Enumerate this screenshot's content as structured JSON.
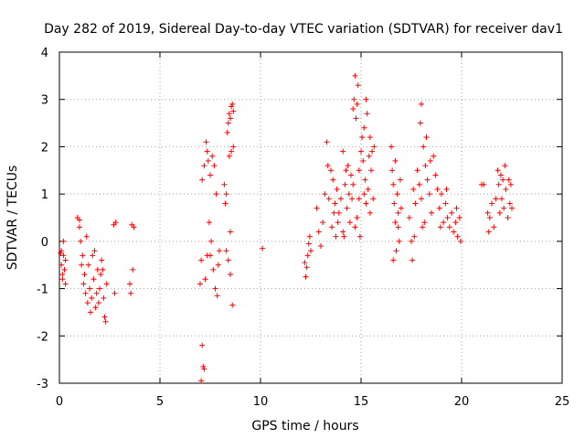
{
  "chart_data": {
    "type": "scatter",
    "title": "Day 282 of 2019, Sidereal Day-to-day VTEC variation (SDTVAR) for receiver dav1",
    "xlabel": "GPS time / hours",
    "ylabel": "SDTVAR / TECUs",
    "xlim": [
      0,
      25
    ],
    "ylim": [
      -3,
      4
    ],
    "xticks": [
      "0",
      "5",
      "10",
      "15",
      "20",
      "25"
    ],
    "yticks": [
      "-3",
      "-2",
      "-1",
      "0",
      "1",
      "2",
      "3",
      "4"
    ],
    "grid": true,
    "marker": "+",
    "marker_color": "#ff0000",
    "series": [
      {
        "name": "SDTVAR",
        "points": [
          [
            0.05,
            -0.25
          ],
          [
            0.1,
            -0.5
          ],
          [
            0.15,
            -0.8
          ],
          [
            0.2,
            -0.3
          ],
          [
            0.25,
            -0.6
          ],
          [
            0.3,
            -0.9
          ],
          [
            0.1,
            -0.2
          ],
          [
            0.2,
            0.0
          ],
          [
            0.15,
            -0.7
          ],
          [
            0.3,
            -0.4
          ],
          [
            0.9,
            0.5
          ],
          [
            1.0,
            0.3
          ],
          [
            1.05,
            0.0
          ],
          [
            1.1,
            -0.5
          ],
          [
            1.2,
            -0.9
          ],
          [
            1.3,
            -1.1
          ],
          [
            1.15,
            -0.3
          ],
          [
            1.25,
            -0.7
          ],
          [
            1.4,
            -1.3
          ],
          [
            1.5,
            -1.0
          ],
          [
            1.6,
            -1.2
          ],
          [
            1.7,
            -0.8
          ],
          [
            1.8,
            -1.4
          ],
          [
            1.9,
            -0.6
          ],
          [
            2.0,
            -1.0
          ],
          [
            2.1,
            -0.4
          ],
          [
            2.2,
            -1.2
          ],
          [
            2.25,
            -1.6
          ],
          [
            2.3,
            -1.7
          ],
          [
            2.35,
            -0.9
          ],
          [
            1.45,
            -0.5
          ],
          [
            1.55,
            -1.5
          ],
          [
            1.75,
            -0.2
          ],
          [
            1.85,
            -1.1
          ],
          [
            1.95,
            -1.3
          ],
          [
            2.05,
            -0.7
          ],
          [
            1.35,
            0.1
          ],
          [
            1.65,
            -0.3
          ],
          [
            2.15,
            -0.6
          ],
          [
            1.0,
            0.45
          ],
          [
            2.7,
            0.35
          ],
          [
            2.8,
            0.4
          ],
          [
            2.75,
            -1.1
          ],
          [
            3.6,
            0.35
          ],
          [
            3.7,
            0.3
          ],
          [
            3.65,
            -0.6
          ],
          [
            3.5,
            -0.9
          ],
          [
            3.55,
            -1.1
          ],
          [
            7.0,
            -0.9
          ],
          [
            7.05,
            -0.4
          ],
          [
            7.1,
            -2.2
          ],
          [
            7.15,
            -2.65
          ],
          [
            7.2,
            -2.7
          ],
          [
            7.05,
            -2.95
          ],
          [
            7.1,
            1.3
          ],
          [
            7.2,
            1.6
          ],
          [
            7.3,
            2.1
          ],
          [
            7.35,
            1.9
          ],
          [
            7.4,
            1.7
          ],
          [
            7.5,
            1.4
          ],
          [
            7.6,
            1.8
          ],
          [
            7.7,
            1.6
          ],
          [
            7.45,
            0.4
          ],
          [
            7.55,
            0.0
          ],
          [
            7.65,
            -0.6
          ],
          [
            7.75,
            -1.0
          ],
          [
            7.8,
            1.0
          ],
          [
            7.5,
            -0.3
          ],
          [
            7.9,
            -0.5
          ],
          [
            7.95,
            -0.2
          ],
          [
            7.25,
            -0.8
          ],
          [
            7.35,
            -0.3
          ],
          [
            7.85,
            -1.15
          ],
          [
            8.2,
            1.2
          ],
          [
            8.25,
            0.8
          ],
          [
            8.3,
            1.0
          ],
          [
            8.35,
            2.3
          ],
          [
            8.4,
            2.5
          ],
          [
            8.45,
            2.7
          ],
          [
            8.5,
            2.6
          ],
          [
            8.55,
            2.85
          ],
          [
            8.6,
            2.9
          ],
          [
            8.65,
            2.75
          ],
          [
            8.45,
            1.8
          ],
          [
            8.55,
            1.9
          ],
          [
            8.65,
            2.0
          ],
          [
            8.5,
            0.2
          ],
          [
            8.4,
            -0.4
          ],
          [
            8.5,
            -0.7
          ],
          [
            8.6,
            -1.35
          ],
          [
            8.3,
            -0.2
          ],
          [
            10.1,
            -0.15
          ],
          [
            12.2,
            -0.45
          ],
          [
            12.25,
            -0.75
          ],
          [
            12.3,
            -0.55
          ],
          [
            12.35,
            -0.3
          ],
          [
            12.4,
            -0.05
          ],
          [
            12.45,
            0.1
          ],
          [
            12.5,
            -0.2
          ],
          [
            12.8,
            0.7
          ],
          [
            12.9,
            0.2
          ],
          [
            13.0,
            -0.1
          ],
          [
            13.1,
            0.4
          ],
          [
            13.2,
            1.0
          ],
          [
            13.3,
            2.1
          ],
          [
            13.35,
            1.6
          ],
          [
            13.4,
            0.9
          ],
          [
            13.5,
            1.5
          ],
          [
            13.55,
            0.3
          ],
          [
            13.6,
            1.3
          ],
          [
            13.7,
            0.8
          ],
          [
            13.75,
            0.1
          ],
          [
            13.8,
            1.1
          ],
          [
            13.9,
            0.6
          ],
          [
            14.0,
            0.9
          ],
          [
            14.1,
            0.2
          ],
          [
            14.2,
            1.2
          ],
          [
            14.3,
            0.7
          ],
          [
            14.35,
            1.6
          ],
          [
            14.4,
            1.0
          ],
          [
            14.45,
            0.4
          ],
          [
            14.5,
            1.4
          ],
          [
            14.55,
            0.9
          ],
          [
            14.6,
            2.8
          ],
          [
            14.65,
            3.0
          ],
          [
            14.7,
            3.5
          ],
          [
            14.75,
            2.6
          ],
          [
            14.8,
            2.9
          ],
          [
            14.85,
            3.3
          ],
          [
            14.9,
            1.5
          ],
          [
            14.95,
            0.1
          ],
          [
            15.0,
            1.9
          ],
          [
            15.05,
            2.2
          ],
          [
            15.1,
            1.7
          ],
          [
            15.15,
            2.4
          ],
          [
            15.2,
            1.3
          ],
          [
            15.25,
            0.8
          ],
          [
            15.3,
            2.7
          ],
          [
            15.35,
            1.1
          ],
          [
            15.4,
            1.8
          ],
          [
            15.45,
            2.2
          ],
          [
            15.5,
            1.5
          ],
          [
            15.55,
            1.9
          ],
          [
            15.6,
            0.9
          ],
          [
            15.65,
            2.0
          ],
          [
            14.1,
            1.9
          ],
          [
            14.25,
            1.5
          ],
          [
            13.85,
            0.4
          ],
          [
            14.7,
            0.3
          ],
          [
            14.8,
            0.5
          ],
          [
            15.15,
            1.0
          ],
          [
            15.25,
            3.0
          ],
          [
            14.6,
            1.2
          ],
          [
            14.9,
            0.9
          ],
          [
            15.45,
            0.6
          ],
          [
            13.65,
            0.6
          ],
          [
            14.15,
            0.1
          ],
          [
            16.5,
            2.0
          ],
          [
            16.55,
            1.5
          ],
          [
            16.6,
            1.2
          ],
          [
            16.65,
            0.8
          ],
          [
            16.7,
            0.4
          ],
          [
            16.75,
            -0.2
          ],
          [
            16.8,
            1.0
          ],
          [
            16.85,
            0.6
          ],
          [
            16.9,
            0.0
          ],
          [
            16.95,
            1.3
          ],
          [
            17.0,
            0.7
          ],
          [
            16.7,
            1.7
          ],
          [
            16.6,
            -0.4
          ],
          [
            16.85,
            0.3
          ],
          [
            17.4,
            0.5
          ],
          [
            17.5,
            0.0
          ],
          [
            17.55,
            -0.4
          ],
          [
            17.6,
            1.1
          ],
          [
            17.7,
            0.8
          ],
          [
            17.8,
            1.5
          ],
          [
            17.9,
            1.2
          ],
          [
            18.0,
            0.9
          ],
          [
            18.1,
            2.0
          ],
          [
            18.2,
            1.6
          ],
          [
            18.25,
            2.2
          ],
          [
            18.3,
            1.3
          ],
          [
            18.4,
            1.0
          ],
          [
            18.5,
            0.6
          ],
          [
            18.6,
            1.8
          ],
          [
            18.7,
            1.4
          ],
          [
            18.8,
            1.1
          ],
          [
            18.9,
            0.7
          ],
          [
            19.0,
            1.0
          ],
          [
            19.1,
            0.4
          ],
          [
            19.2,
            0.8
          ],
          [
            19.3,
            0.5
          ],
          [
            19.4,
            0.3
          ],
          [
            19.5,
            0.6
          ],
          [
            19.6,
            0.2
          ],
          [
            19.7,
            0.4
          ],
          [
            19.8,
            0.1
          ],
          [
            19.9,
            0.5
          ],
          [
            19.95,
            0.0
          ],
          [
            19.75,
            0.7
          ],
          [
            18.0,
            2.9
          ],
          [
            17.95,
            2.5
          ],
          [
            18.05,
            0.3
          ],
          [
            17.65,
            0.1
          ],
          [
            18.15,
            0.4
          ],
          [
            18.45,
            1.7
          ],
          [
            18.95,
            0.3
          ],
          [
            19.25,
            1.1
          ],
          [
            21.0,
            1.2
          ],
          [
            21.1,
            1.2
          ],
          [
            21.3,
            0.6
          ],
          [
            21.35,
            0.2
          ],
          [
            21.4,
            0.5
          ],
          [
            21.5,
            0.8
          ],
          [
            21.6,
            0.3
          ],
          [
            21.7,
            0.9
          ],
          [
            21.8,
            1.5
          ],
          [
            21.85,
            1.2
          ],
          [
            21.9,
            0.6
          ],
          [
            21.95,
            1.4
          ],
          [
            22.0,
            0.9
          ],
          [
            22.05,
            1.3
          ],
          [
            22.1,
            0.7
          ],
          [
            22.15,
            1.6
          ],
          [
            22.2,
            1.1
          ],
          [
            22.3,
            0.5
          ],
          [
            22.35,
            1.3
          ],
          [
            22.4,
            0.8
          ],
          [
            22.45,
            1.2
          ],
          [
            22.5,
            0.7
          ]
        ]
      }
    ]
  }
}
